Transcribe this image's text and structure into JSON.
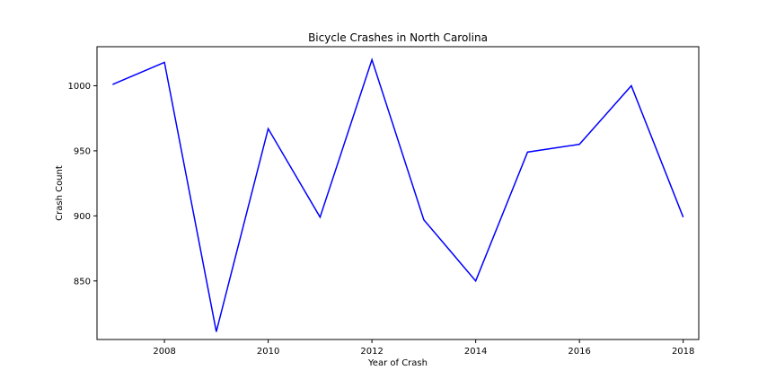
{
  "chart_data": {
    "type": "line",
    "title": "Bicycle Crashes in North Carolina",
    "xlabel": "Year of Crash",
    "ylabel": "Crash Count",
    "xlim": [
      2006.7,
      2018.3
    ],
    "ylim": [
      805,
      1030
    ],
    "x_ticks": [
      2008,
      2010,
      2012,
      2014,
      2016,
      2018
    ],
    "x_tick_labels": [
      "2008",
      "2010",
      "2012",
      "2014",
      "2016",
      "2018"
    ],
    "y_ticks": [
      850,
      900,
      950,
      1000
    ],
    "y_tick_labels": [
      "850",
      "900",
      "950",
      "1000"
    ],
    "grid": false,
    "x": [
      2007,
      2008,
      2009,
      2010,
      2011,
      2012,
      2013,
      2014,
      2015,
      2016,
      2017,
      2018
    ],
    "series": [
      {
        "color": "#0000ff",
        "values": [
          1001,
          1018,
          811,
          967,
          899,
          1020,
          897,
          850,
          949,
          955,
          1000,
          899
        ]
      }
    ]
  }
}
